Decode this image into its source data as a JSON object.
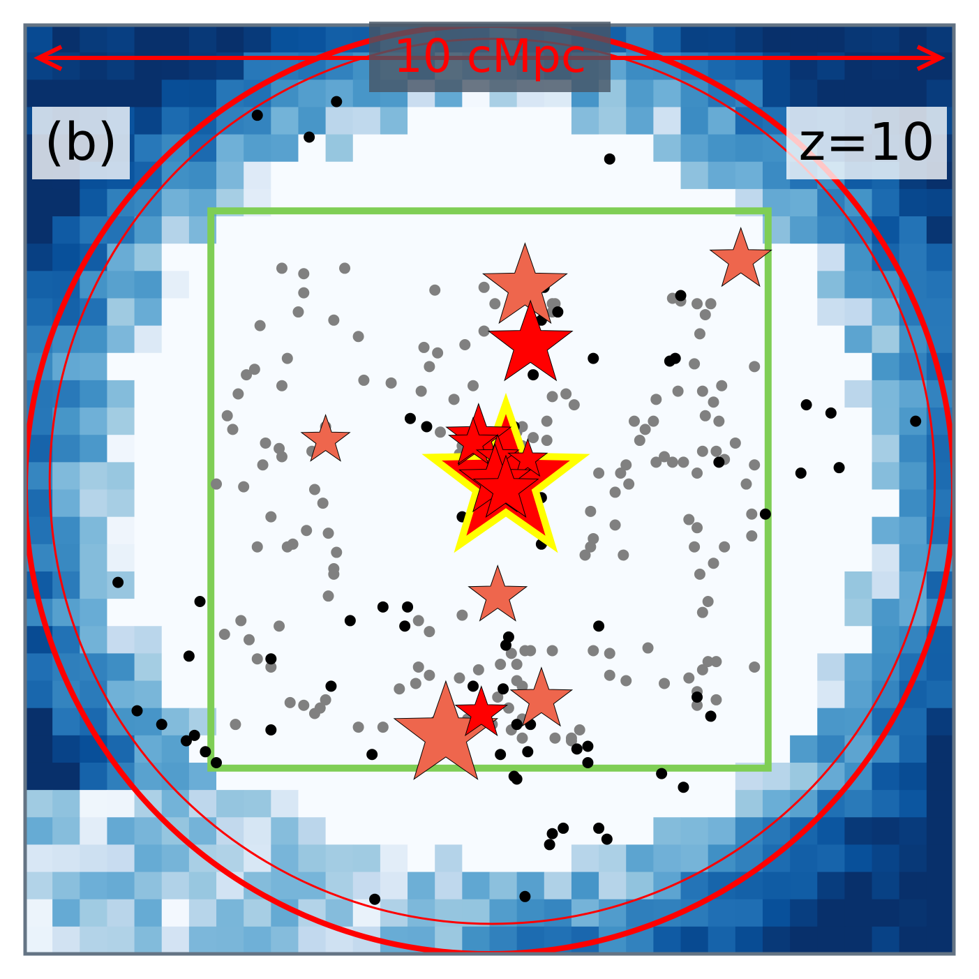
{
  "chart_data": {
    "type": "scatter",
    "panel_label": "(b)",
    "redshift_label": "z=10",
    "scale_bar": {
      "label": "10 cMpc",
      "length_cmpc": 10
    },
    "xlim": [
      0,
      34
    ],
    "ylim": [
      0,
      34
    ],
    "colors": {
      "frame": "#647484",
      "map_dark": "#08306b",
      "map_light": "#f7fbff",
      "scale": "#ff0000",
      "box": "#7fce55",
      "galaxy_grey": "#808080",
      "galaxy_black": "#000000",
      "star_salmon": "#ee664d",
      "star_red": "#ff0000",
      "star_highlight": "#ffff00"
    },
    "circles": [
      {
        "name": "outer",
        "cx": 17,
        "cy": 17,
        "r": 17.0,
        "stroke": "#ff0000"
      },
      {
        "name": "inner",
        "cx": 17.1,
        "cy": 17.3,
        "r": 16.2,
        "stroke": "#ff0000"
      }
    ],
    "box": {
      "x0": 6.8,
      "y0": 6.8,
      "x1": 27.2,
      "y1": 27.2
    },
    "density_map": {
      "nx": 34,
      "ny": 34,
      "clear_center": [
        17.2,
        17.0
      ],
      "clear_radius": 13.6,
      "seed": 7
    },
    "grey_galaxies": [
      [
        9.4,
        25.1
      ],
      [
        10.2,
        24.9
      ],
      [
        11.7,
        25.1
      ],
      [
        10.2,
        24.2
      ],
      [
        10.0,
        23.5
      ],
      [
        8.6,
        23.0
      ],
      [
        11.3,
        23.2
      ],
      [
        12.2,
        22.6
      ],
      [
        9.6,
        21.8
      ],
      [
        8.1,
        21.2
      ],
      [
        8.4,
        21.4
      ],
      [
        12.4,
        21.0
      ],
      [
        7.8,
        20.5
      ],
      [
        9.4,
        20.8
      ],
      [
        7.4,
        19.7
      ],
      [
        7.6,
        19.2
      ],
      [
        11.0,
        19.3
      ],
      [
        8.8,
        18.7
      ],
      [
        9.3,
        18.5
      ],
      [
        10.5,
        18.4
      ],
      [
        9.4,
        18.2
      ],
      [
        8.7,
        17.9
      ],
      [
        10.6,
        17.0
      ],
      [
        10.9,
        16.5
      ],
      [
        7.0,
        17.2
      ],
      [
        8.0,
        17.1
      ],
      [
        9.0,
        16.0
      ],
      [
        10.3,
        15.5
      ],
      [
        11.1,
        15.4
      ],
      [
        8.5,
        14.9
      ],
      [
        9.6,
        14.9
      ],
      [
        9.8,
        15.0
      ],
      [
        11.4,
        14.7
      ],
      [
        11.3,
        14.1
      ],
      [
        11.3,
        13.9
      ],
      [
        11.1,
        13.1
      ],
      [
        7.9,
        12.2
      ],
      [
        7.3,
        11.7
      ],
      [
        9.3,
        12.0
      ],
      [
        8.2,
        11.5
      ],
      [
        8.5,
        10.8
      ],
      [
        9.0,
        10.5
      ],
      [
        10.2,
        9.1
      ],
      [
        10.6,
        8.8
      ],
      [
        7.7,
        8.4
      ],
      [
        9.7,
        9.2
      ],
      [
        10.8,
        9.0
      ],
      [
        11.0,
        9.3
      ],
      [
        12.2,
        8.3
      ],
      [
        15.0,
        24.3
      ],
      [
        16.8,
        24.4
      ],
      [
        17.2,
        23.8
      ],
      [
        19.3,
        23.8
      ],
      [
        19.4,
        23.8
      ],
      [
        19.3,
        23.5
      ],
      [
        18.1,
        22.5
      ],
      [
        19.2,
        22.5
      ],
      [
        14.6,
        22.2
      ],
      [
        15.1,
        22.0
      ],
      [
        16.1,
        22.3
      ],
      [
        16.8,
        22.8
      ],
      [
        14.8,
        21.5
      ],
      [
        13.4,
        20.9
      ],
      [
        14.5,
        20.6
      ],
      [
        15.7,
        20.3
      ],
      [
        16.4,
        20.8
      ],
      [
        19.3,
        20.4
      ],
      [
        19.8,
        20.5
      ],
      [
        20.1,
        20.1
      ],
      [
        19.1,
        19.5
      ],
      [
        18.2,
        19.3
      ],
      [
        18.0,
        19.1
      ],
      [
        18.6,
        18.9
      ],
      [
        18.2,
        18.6
      ],
      [
        17.6,
        18.3
      ],
      [
        17.4,
        17.4
      ],
      [
        15.9,
        18.3
      ],
      [
        16.0,
        18.6
      ],
      [
        15.2,
        19.1
      ],
      [
        19.1,
        18.8
      ],
      [
        21.0,
        17.6
      ],
      [
        21.8,
        17.6
      ],
      [
        22.0,
        17.9
      ],
      [
        22.1,
        17.2
      ],
      [
        21.6,
        16.9
      ],
      [
        20.7,
        16.2
      ],
      [
        21.6,
        15.7
      ],
      [
        20.8,
        15.2
      ],
      [
        20.7,
        14.9
      ],
      [
        20.5,
        14.6
      ],
      [
        21.9,
        14.6
      ],
      [
        17.6,
        13.2
      ],
      [
        16.0,
        12.4
      ],
      [
        14.4,
        12.2
      ],
      [
        14.8,
        11.8
      ],
      [
        17.4,
        10.6
      ],
      [
        16.6,
        10.4
      ],
      [
        15.9,
        10.1
      ],
      [
        18.0,
        10.0
      ],
      [
        18.2,
        9.8
      ],
      [
        17.3,
        9.4
      ],
      [
        17.7,
        9.0
      ],
      [
        18.2,
        8.6
      ],
      [
        15.0,
        8.5
      ],
      [
        14.9,
        8.3
      ],
      [
        13.1,
        8.3
      ],
      [
        16.2,
        8.6
      ],
      [
        17.1,
        8.4
      ],
      [
        17.8,
        8.2
      ],
      [
        18.2,
        7.9
      ],
      [
        19.4,
        7.9
      ],
      [
        20.0,
        7.9
      ],
      [
        20.3,
        8.2
      ],
      [
        20.0,
        7.8
      ],
      [
        13.7,
        9.7
      ],
      [
        14.3,
        9.9
      ],
      [
        14.4,
        10.5
      ],
      [
        14.8,
        10.2
      ],
      [
        17.8,
        11.0
      ],
      [
        18.0,
        10.6
      ],
      [
        18.3,
        11.1
      ],
      [
        18.5,
        11.1
      ],
      [
        19.3,
        11.1
      ],
      [
        20.8,
        11.1
      ],
      [
        21.4,
        11.0
      ],
      [
        21.4,
        10.2
      ],
      [
        22.0,
        10.0
      ],
      [
        22.8,
        11.2
      ],
      [
        23.4,
        9.9
      ],
      [
        24.3,
        10.1
      ],
      [
        24.8,
        10.4
      ],
      [
        25.0,
        10.7
      ],
      [
        25.3,
        10.7
      ],
      [
        26.7,
        10.5
      ],
      [
        25.3,
        9.3
      ],
      [
        24.6,
        9.6
      ],
      [
        24.6,
        9.1
      ],
      [
        24.8,
        12.5
      ],
      [
        25.0,
        12.9
      ],
      [
        24.7,
        13.9
      ],
      [
        25.2,
        14.3
      ],
      [
        24.5,
        14.9
      ],
      [
        25.6,
        14.9
      ],
      [
        24.6,
        15.6
      ],
      [
        24.3,
        15.9
      ],
      [
        26.6,
        15.3
      ],
      [
        26.6,
        16.1
      ],
      [
        26.7,
        17.9
      ],
      [
        26.4,
        17.2
      ],
      [
        24.6,
        17.6
      ],
      [
        23.7,
        18.0
      ],
      [
        24.1,
        18.0
      ],
      [
        24.8,
        18.4
      ],
      [
        25.3,
        18.4
      ],
      [
        25.6,
        18.1
      ],
      [
        26.0,
        18.7
      ],
      [
        24.9,
        19.7
      ],
      [
        25.4,
        19.5
      ],
      [
        23.1,
        18.0
      ],
      [
        23.4,
        18.2
      ],
      [
        23.9,
        20.6
      ],
      [
        24.8,
        20.6
      ],
      [
        25.2,
        20.2
      ],
      [
        25.5,
        20.8
      ],
      [
        26.7,
        21.5
      ],
      [
        24.5,
        21.6
      ],
      [
        24.7,
        22.7
      ],
      [
        25.1,
        23.8
      ],
      [
        24.9,
        23.4
      ],
      [
        24.6,
        23.8
      ],
      [
        24.0,
        23.9
      ],
      [
        23.7,
        24.0
      ],
      [
        22.5,
        18.8
      ],
      [
        22.7,
        19.2
      ],
      [
        23.0,
        19.5
      ],
      [
        22.3,
        19.5
      ],
      [
        23.1,
        20.3
      ]
    ],
    "black_galaxies": [
      [
        8.5,
        30.7
      ],
      [
        10.4,
        29.9
      ],
      [
        11.4,
        31.2
      ],
      [
        21.4,
        29.1
      ],
      [
        24.0,
        24.1
      ],
      [
        19.0,
        24.4
      ],
      [
        19.5,
        23.5
      ],
      [
        18.9,
        23.2
      ],
      [
        18.3,
        22.3
      ],
      [
        20.8,
        21.8
      ],
      [
        18.6,
        21.2
      ],
      [
        23.6,
        21.7
      ],
      [
        23.8,
        21.8
      ],
      [
        28.6,
        20.1
      ],
      [
        29.5,
        19.8
      ],
      [
        32.6,
        19.5
      ],
      [
        14.1,
        19.6
      ],
      [
        14.7,
        19.3
      ],
      [
        17.9,
        19.3
      ],
      [
        17.6,
        19.0
      ],
      [
        16.6,
        18.0
      ],
      [
        17.0,
        18.0
      ],
      [
        16.3,
        17.6
      ],
      [
        17.3,
        17.4
      ],
      [
        16.4,
        17.2
      ],
      [
        18.3,
        17.3
      ],
      [
        18.0,
        16.8
      ],
      [
        17.7,
        16.6
      ],
      [
        17.3,
        16.4
      ],
      [
        17.5,
        16.3
      ],
      [
        16.0,
        16.0
      ],
      [
        16.3,
        15.9
      ],
      [
        18.9,
        16.7
      ],
      [
        18.2,
        16.1
      ],
      [
        18.9,
        15.0
      ],
      [
        25.4,
        18.0
      ],
      [
        28.4,
        17.6
      ],
      [
        29.8,
        17.8
      ],
      [
        27.1,
        16.1
      ],
      [
        3.4,
        13.6
      ],
      [
        6.4,
        12.9
      ],
      [
        13.1,
        12.7
      ],
      [
        14.0,
        12.7
      ],
      [
        11.9,
        12.2
      ],
      [
        13.9,
        12.0
      ],
      [
        17.4,
        13.2
      ],
      [
        17.7,
        11.6
      ],
      [
        17.6,
        11.3
      ],
      [
        21.0,
        12.0
      ],
      [
        6.0,
        10.9
      ],
      [
        9.0,
        10.8
      ],
      [
        11.2,
        9.8
      ],
      [
        16.4,
        9.8
      ],
      [
        17.5,
        9.7
      ],
      [
        4.1,
        8.9
      ],
      [
        5.0,
        8.4
      ],
      [
        6.2,
        8.0
      ],
      [
        5.9,
        7.8
      ],
      [
        6.6,
        7.4
      ],
      [
        7.0,
        7.0
      ],
      [
        9.0,
        8.2
      ],
      [
        12.7,
        7.3
      ],
      [
        17.4,
        7.3
      ],
      [
        18.4,
        7.4
      ],
      [
        18.0,
        8.4
      ],
      [
        18.5,
        8.4
      ],
      [
        20.2,
        7.5
      ],
      [
        20.6,
        7.6
      ],
      [
        20.6,
        7.0
      ],
      [
        17.9,
        6.5
      ],
      [
        18.0,
        6.4
      ],
      [
        23.3,
        6.6
      ],
      [
        24.1,
        6.1
      ],
      [
        24.6,
        9.4
      ],
      [
        25.1,
        8.7
      ],
      [
        19.2,
        4.0
      ],
      [
        19.3,
        4.4
      ],
      [
        19.7,
        4.6
      ],
      [
        21.0,
        4.6
      ],
      [
        21.3,
        4.2
      ],
      [
        12.8,
        2.0
      ],
      [
        18.3,
        2.1
      ]
    ],
    "stars": [
      {
        "x": 18.3,
        "y": 24.4,
        "size": 2.6,
        "color": "#ee664d"
      },
      {
        "x": 26.2,
        "y": 25.4,
        "size": 1.9,
        "color": "#ee664d"
      },
      {
        "x": 11.0,
        "y": 18.8,
        "size": 1.5,
        "color": "#ee664d"
      },
      {
        "x": 17.3,
        "y": 13.1,
        "size": 1.8,
        "color": "#ee664d"
      },
      {
        "x": 18.9,
        "y": 9.3,
        "size": 1.9,
        "color": "#ee664d"
      },
      {
        "x": 15.4,
        "y": 8.0,
        "size": 3.2,
        "color": "#ee664d"
      },
      {
        "x": 18.5,
        "y": 22.3,
        "size": 2.6,
        "color": "#ff0000"
      },
      {
        "x": 16.6,
        "y": 18.9,
        "size": 2.0,
        "color": "#ff0000"
      },
      {
        "x": 16.4,
        "y": 18.7,
        "size": 1.5,
        "color": "#ff0000"
      },
      {
        "x": 17.3,
        "y": 18.2,
        "size": 1.3,
        "color": "#ff0000"
      },
      {
        "x": 18.4,
        "y": 18.1,
        "size": 1.2,
        "color": "#ff0000"
      },
      {
        "x": 17.2,
        "y": 17.3,
        "size": 2.2,
        "color": "#ff0000"
      },
      {
        "x": 17.6,
        "y": 17.0,
        "size": 2.0,
        "color": "#ff0000"
      },
      {
        "x": 16.7,
        "y": 8.8,
        "size": 1.6,
        "color": "#ff0000"
      },
      {
        "x": 17.6,
        "y": 17.3,
        "size": 4.6,
        "color": "#ff0000",
        "highlight": true
      }
    ]
  }
}
